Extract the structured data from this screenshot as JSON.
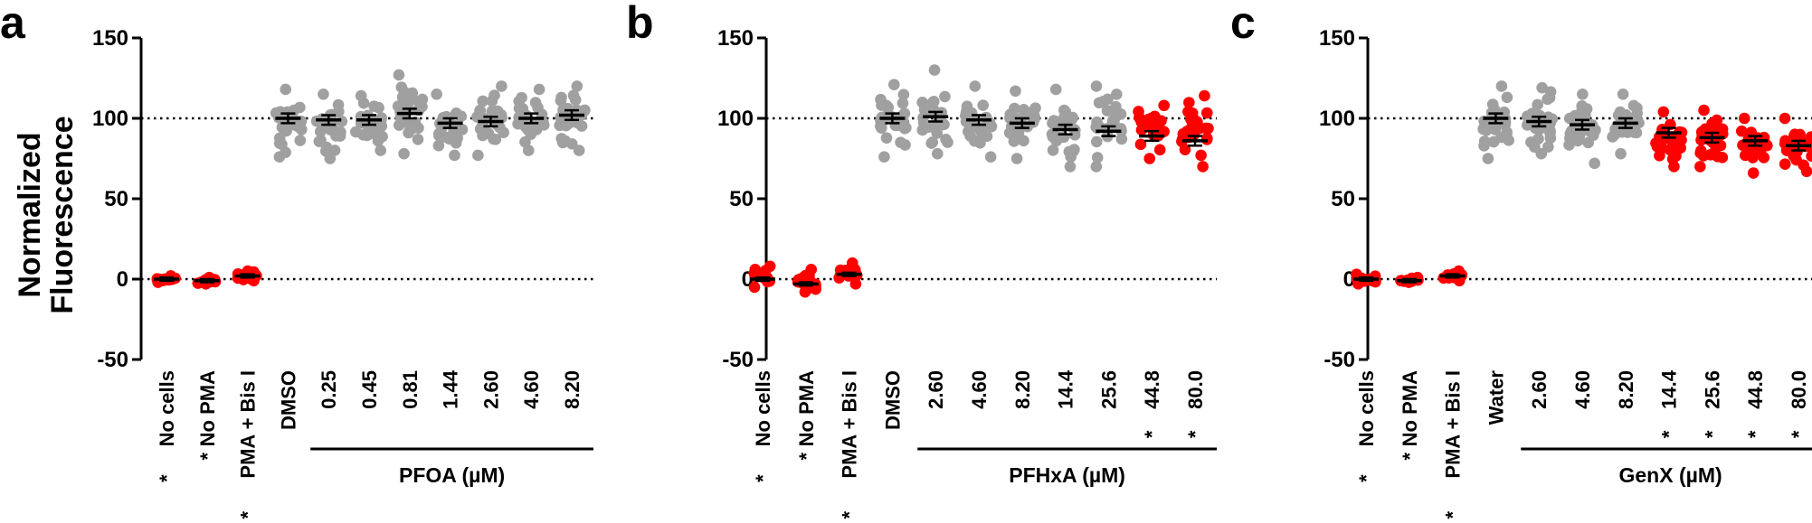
{
  "figure": {
    "ylabel_line1": "Normalized",
    "ylabel_line2": "Fluorescence"
  },
  "colors": {
    "gray": "#a0a0a0",
    "red": "#ff0000",
    "axis": "#000000"
  },
  "chart_data": [
    {
      "type": "scatter",
      "panel": "a",
      "ylim": [
        -50,
        150
      ],
      "yticks": [
        "150",
        "100",
        "50",
        "0",
        "-50"
      ],
      "reference_lines": [
        100,
        0
      ],
      "categories": [
        "No cells",
        "No PMA",
        "PMA + Bis I",
        "DMSO",
        "0.25",
        "0.45",
        "0.81",
        "1.44",
        "2.60",
        "4.60",
        "8.20"
      ],
      "significant": [
        true,
        true,
        true,
        false,
        false,
        false,
        false,
        false,
        false,
        false,
        false
      ],
      "means": [
        0,
        -1,
        2,
        100,
        99,
        99,
        103,
        97,
        98,
        100,
        102
      ],
      "spread": [
        [
          -2,
          2
        ],
        [
          -3,
          1
        ],
        [
          -1,
          5
        ],
        [
          76,
          118
        ],
        [
          75,
          115
        ],
        [
          80,
          114
        ],
        [
          78,
          127
        ],
        [
          77,
          115
        ],
        [
          77,
          120
        ],
        [
          80,
          118
        ],
        [
          80,
          120
        ]
      ],
      "group_label": "PFOA (µM)",
      "group_span": [
        4,
        10
      ]
    },
    {
      "type": "scatter",
      "panel": "b",
      "ylim": [
        -50,
        150
      ],
      "yticks": [
        "150",
        "100",
        "50",
        "0",
        "-50"
      ],
      "reference_lines": [
        100,
        0
      ],
      "categories": [
        "No cells",
        "No PMA",
        "PMA + Bis I",
        "DMSO",
        "2.60",
        "4.60",
        "8.20",
        "14.4",
        "25.6",
        "44.8",
        "80.0"
      ],
      "significant": [
        true,
        true,
        true,
        false,
        false,
        false,
        false,
        false,
        false,
        true,
        true
      ],
      "means": [
        0,
        -3,
        3,
        100,
        101,
        99,
        97,
        93,
        92,
        89,
        86
      ],
      "spread": [
        [
          -5,
          8
        ],
        [
          -8,
          6
        ],
        [
          -3,
          10
        ],
        [
          76,
          121
        ],
        [
          78,
          130
        ],
        [
          76,
          120
        ],
        [
          75,
          117
        ],
        [
          70,
          118
        ],
        [
          70,
          120
        ],
        [
          75,
          108
        ],
        [
          70,
          114
        ]
      ],
      "group_label": "PFHxA (µM)",
      "group_span": [
        4,
        10
      ]
    },
    {
      "type": "scatter",
      "panel": "c",
      "ylim": [
        -50,
        150
      ],
      "yticks": [
        "150",
        "100",
        "50",
        "0",
        "-50"
      ],
      "reference_lines": [
        100,
        0
      ],
      "categories": [
        "No cells",
        "No PMA",
        "PMA + Bis I",
        "Water",
        "2.60",
        "4.60",
        "8.20",
        "14.4",
        "25.6",
        "44.8",
        "80.0"
      ],
      "significant": [
        true,
        true,
        true,
        false,
        false,
        false,
        false,
        true,
        true,
        true,
        true
      ],
      "means": [
        0,
        -1,
        2,
        100,
        98,
        96,
        97,
        91,
        88,
        86,
        83
      ],
      "spread": [
        [
          -3,
          3
        ],
        [
          -2,
          1
        ],
        [
          -1,
          5
        ],
        [
          75,
          120
        ],
        [
          78,
          119
        ],
        [
          72,
          115
        ],
        [
          78,
          115
        ],
        [
          70,
          104
        ],
        [
          70,
          105
        ],
        [
          66,
          100
        ],
        [
          67,
          100
        ]
      ],
      "group_label": "GenX (µM)",
      "group_span": [
        4,
        10
      ]
    }
  ]
}
